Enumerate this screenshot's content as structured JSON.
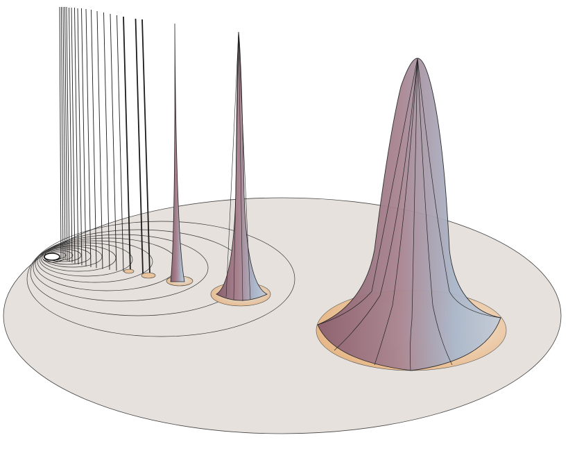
{
  "scene": {
    "background_color": "#ffffff",
    "disk_color": "#e6e1dc",
    "line_color": "#2a2a2a",
    "peak_tint_warm": "#9e7682",
    "peak_tint_cool": "#b8c6d6",
    "base_tint": "#e8b98a"
  }
}
